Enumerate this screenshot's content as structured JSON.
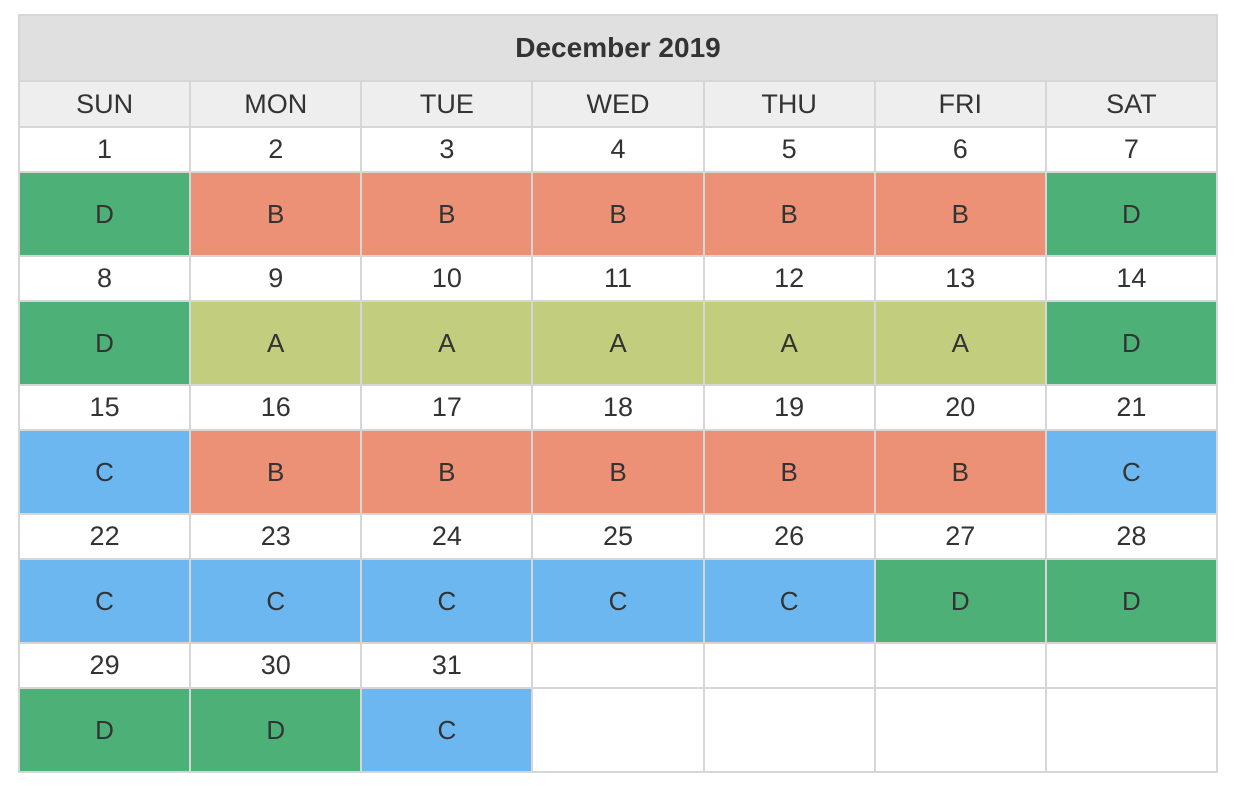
{
  "calendar": {
    "title": "December 2019",
    "weekdays": [
      "SUN",
      "MON",
      "TUE",
      "WED",
      "THU",
      "FRI",
      "SAT"
    ],
    "colors": {
      "A": "#c2cd7e",
      "B": "#ed9176",
      "C": "#6cb7f0",
      "D": "#4db177",
      "empty": "#ffffff"
    },
    "weeks": [
      {
        "days": [
          "1",
          "2",
          "3",
          "4",
          "5",
          "6",
          "7"
        ],
        "codes": [
          "D",
          "B",
          "B",
          "B",
          "B",
          "B",
          "D"
        ]
      },
      {
        "days": [
          "8",
          "9",
          "10",
          "11",
          "12",
          "13",
          "14"
        ],
        "codes": [
          "D",
          "A",
          "A",
          "A",
          "A",
          "A",
          "D"
        ]
      },
      {
        "days": [
          "15",
          "16",
          "17",
          "18",
          "19",
          "20",
          "21"
        ],
        "codes": [
          "C",
          "B",
          "B",
          "B",
          "B",
          "B",
          "C"
        ]
      },
      {
        "days": [
          "22",
          "23",
          "24",
          "25",
          "26",
          "27",
          "28"
        ],
        "codes": [
          "C",
          "C",
          "C",
          "C",
          "C",
          "D",
          "D"
        ]
      },
      {
        "days": [
          "29",
          "30",
          "31",
          "",
          "",
          "",
          ""
        ],
        "codes": [
          "D",
          "D",
          "C",
          "",
          "",
          "",
          ""
        ]
      }
    ]
  }
}
